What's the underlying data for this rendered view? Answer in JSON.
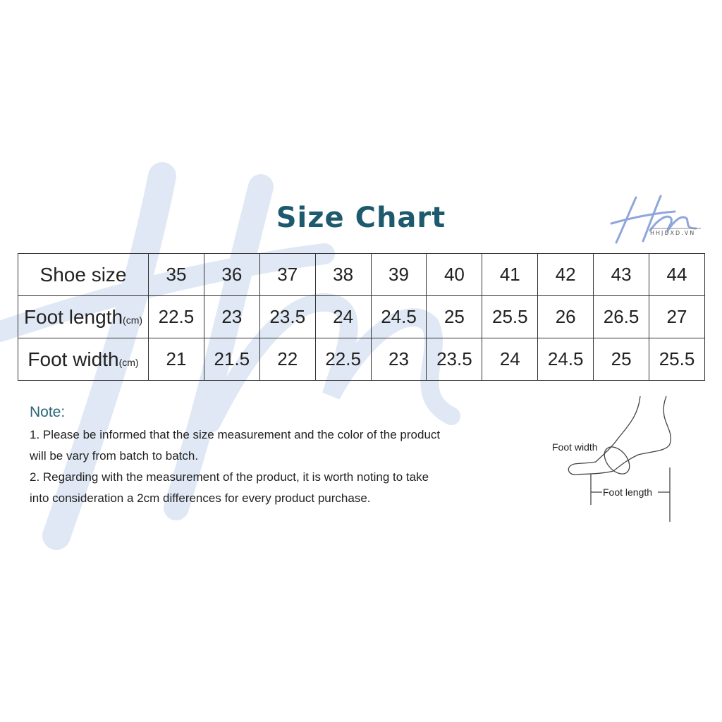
{
  "title": "Size Chart",
  "logo": {
    "mark": "Hm",
    "text": "HHJDXD.VN"
  },
  "table": {
    "rows": [
      {
        "label": "Shoe size",
        "unit": "",
        "values": [
          "35",
          "36",
          "37",
          "38",
          "39",
          "40",
          "41",
          "42",
          "43",
          "44"
        ]
      },
      {
        "label": "Foot length",
        "unit": "(cm)",
        "values": [
          "22.5",
          "23",
          "23.5",
          "24",
          "24.5",
          "25",
          "25.5",
          "26",
          "26.5",
          "27"
        ]
      },
      {
        "label": "Foot width",
        "unit": "(cm)",
        "values": [
          "21",
          "21.5",
          "22",
          "22.5",
          "23",
          "23.5",
          "24",
          "24.5",
          "25",
          "25.5"
        ]
      }
    ]
  },
  "note": {
    "title": "Note:",
    "lines": [
      "1. Please be informed that the size measurement and the color of the product",
      "will be vary from batch to batch.",
      "2. Regarding with the measurement of the product, it is worth noting to take",
      "into consideration a 2cm differences for every product purchase."
    ]
  },
  "diagram": {
    "foot_width_label": "Foot width",
    "foot_length_label": "Foot length"
  },
  "colors": {
    "title": "#1e5a6d",
    "note_title": "#2a6478",
    "watermark": "#dfe8f4"
  }
}
